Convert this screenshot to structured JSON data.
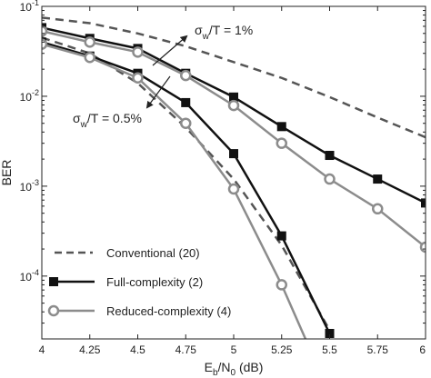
{
  "chart_data": {
    "type": "line",
    "title": "",
    "xlabel": {
      "main": "E",
      "sub_b": "b",
      "slash": "/N",
      "sub_0": "0",
      "unit": " (dB)"
    },
    "ylabel": "BER",
    "xlim": [
      4,
      6
    ],
    "ylim": [
      2e-05,
      0.1
    ],
    "yscale": "log",
    "x_ticks": [
      "4",
      "4.25",
      "4.5",
      "4.75",
      "5",
      "5.25",
      "5.5",
      "5.75",
      "6"
    ],
    "y_ticks": [
      {
        "base": "10",
        "exp": "-1",
        "value": 0.1
      },
      {
        "base": "10",
        "exp": "-2",
        "value": 0.01
      },
      {
        "base": "10",
        "exp": "-3",
        "value": 0.001
      },
      {
        "base": "10",
        "exp": "-4",
        "value": 0.0001
      }
    ],
    "grid": false,
    "legend_position": "bottom-left",
    "colors": {
      "conventional": "#555555",
      "full": "#111111",
      "reduced": "#8c8c8c"
    },
    "series": [
      {
        "key": "conv_1",
        "legend": "conventional",
        "style": "dashed",
        "marker": "none",
        "x": [
          4,
          4.25,
          4.5,
          4.75,
          5,
          5.25,
          5.5,
          5.75,
          6
        ],
        "y": [
          0.075,
          0.065,
          0.05,
          0.036,
          0.024,
          0.016,
          0.0098,
          0.0058,
          0.0035
        ]
      },
      {
        "key": "full_1",
        "legend": "full",
        "style": "solid",
        "marker": "square",
        "x": [
          4,
          4.25,
          4.5,
          4.75,
          5,
          5.25,
          5.5,
          5.75,
          6
        ],
        "y": [
          0.058,
          0.044,
          0.034,
          0.018,
          0.0098,
          0.0046,
          0.0022,
          0.0012,
          0.00065
        ]
      },
      {
        "key": "red_1",
        "legend": "reduced",
        "style": "solid",
        "marker": "circle",
        "x": [
          4,
          4.25,
          4.5,
          4.75,
          5,
          5.25,
          5.5,
          5.75,
          6
        ],
        "y": [
          0.053,
          0.04,
          0.031,
          0.017,
          0.0079,
          0.003,
          0.0012,
          0.00056,
          0.00021
        ]
      },
      {
        "key": "conv_2",
        "legend": "conventional",
        "style": "dashed",
        "marker": "none",
        "x": [
          4,
          4.25,
          4.5,
          4.75,
          5,
          5.25,
          5.5
        ],
        "y": [
          0.045,
          0.03,
          0.014,
          0.0045,
          0.0012,
          0.00022,
          2.5e-05
        ]
      },
      {
        "key": "full_2",
        "legend": "full",
        "style": "solid",
        "marker": "square",
        "x": [
          4,
          4.25,
          4.5,
          4.75,
          5,
          5.25,
          5.5
        ],
        "y": [
          0.04,
          0.028,
          0.018,
          0.0085,
          0.0023,
          0.00028,
          2.3e-05
        ]
      },
      {
        "key": "red_2",
        "legend": "reduced",
        "style": "solid",
        "marker": "circle",
        "x": [
          4,
          4.25,
          4.5,
          4.75,
          5,
          5.25,
          5.42
        ],
        "y": [
          0.038,
          0.027,
          0.016,
          0.005,
          0.00093,
          8e-05,
          1.2e-05
        ]
      }
    ],
    "legend": [
      {
        "key": "conventional",
        "label": "Conventional (20)",
        "style": "dashed",
        "marker": "none"
      },
      {
        "key": "full",
        "label": "Full-complexity (2)",
        "style": "solid",
        "marker": "square"
      },
      {
        "key": "reduced",
        "label": "Reduced-complexity (4)",
        "style": "solid",
        "marker": "circle"
      }
    ],
    "annotations": [
      {
        "sigma": "σ",
        "sub": "w",
        "rest": "/T = 1%"
      },
      {
        "sigma": "σ",
        "sub": "w",
        "rest": "/T = 0.5%"
      }
    ]
  }
}
